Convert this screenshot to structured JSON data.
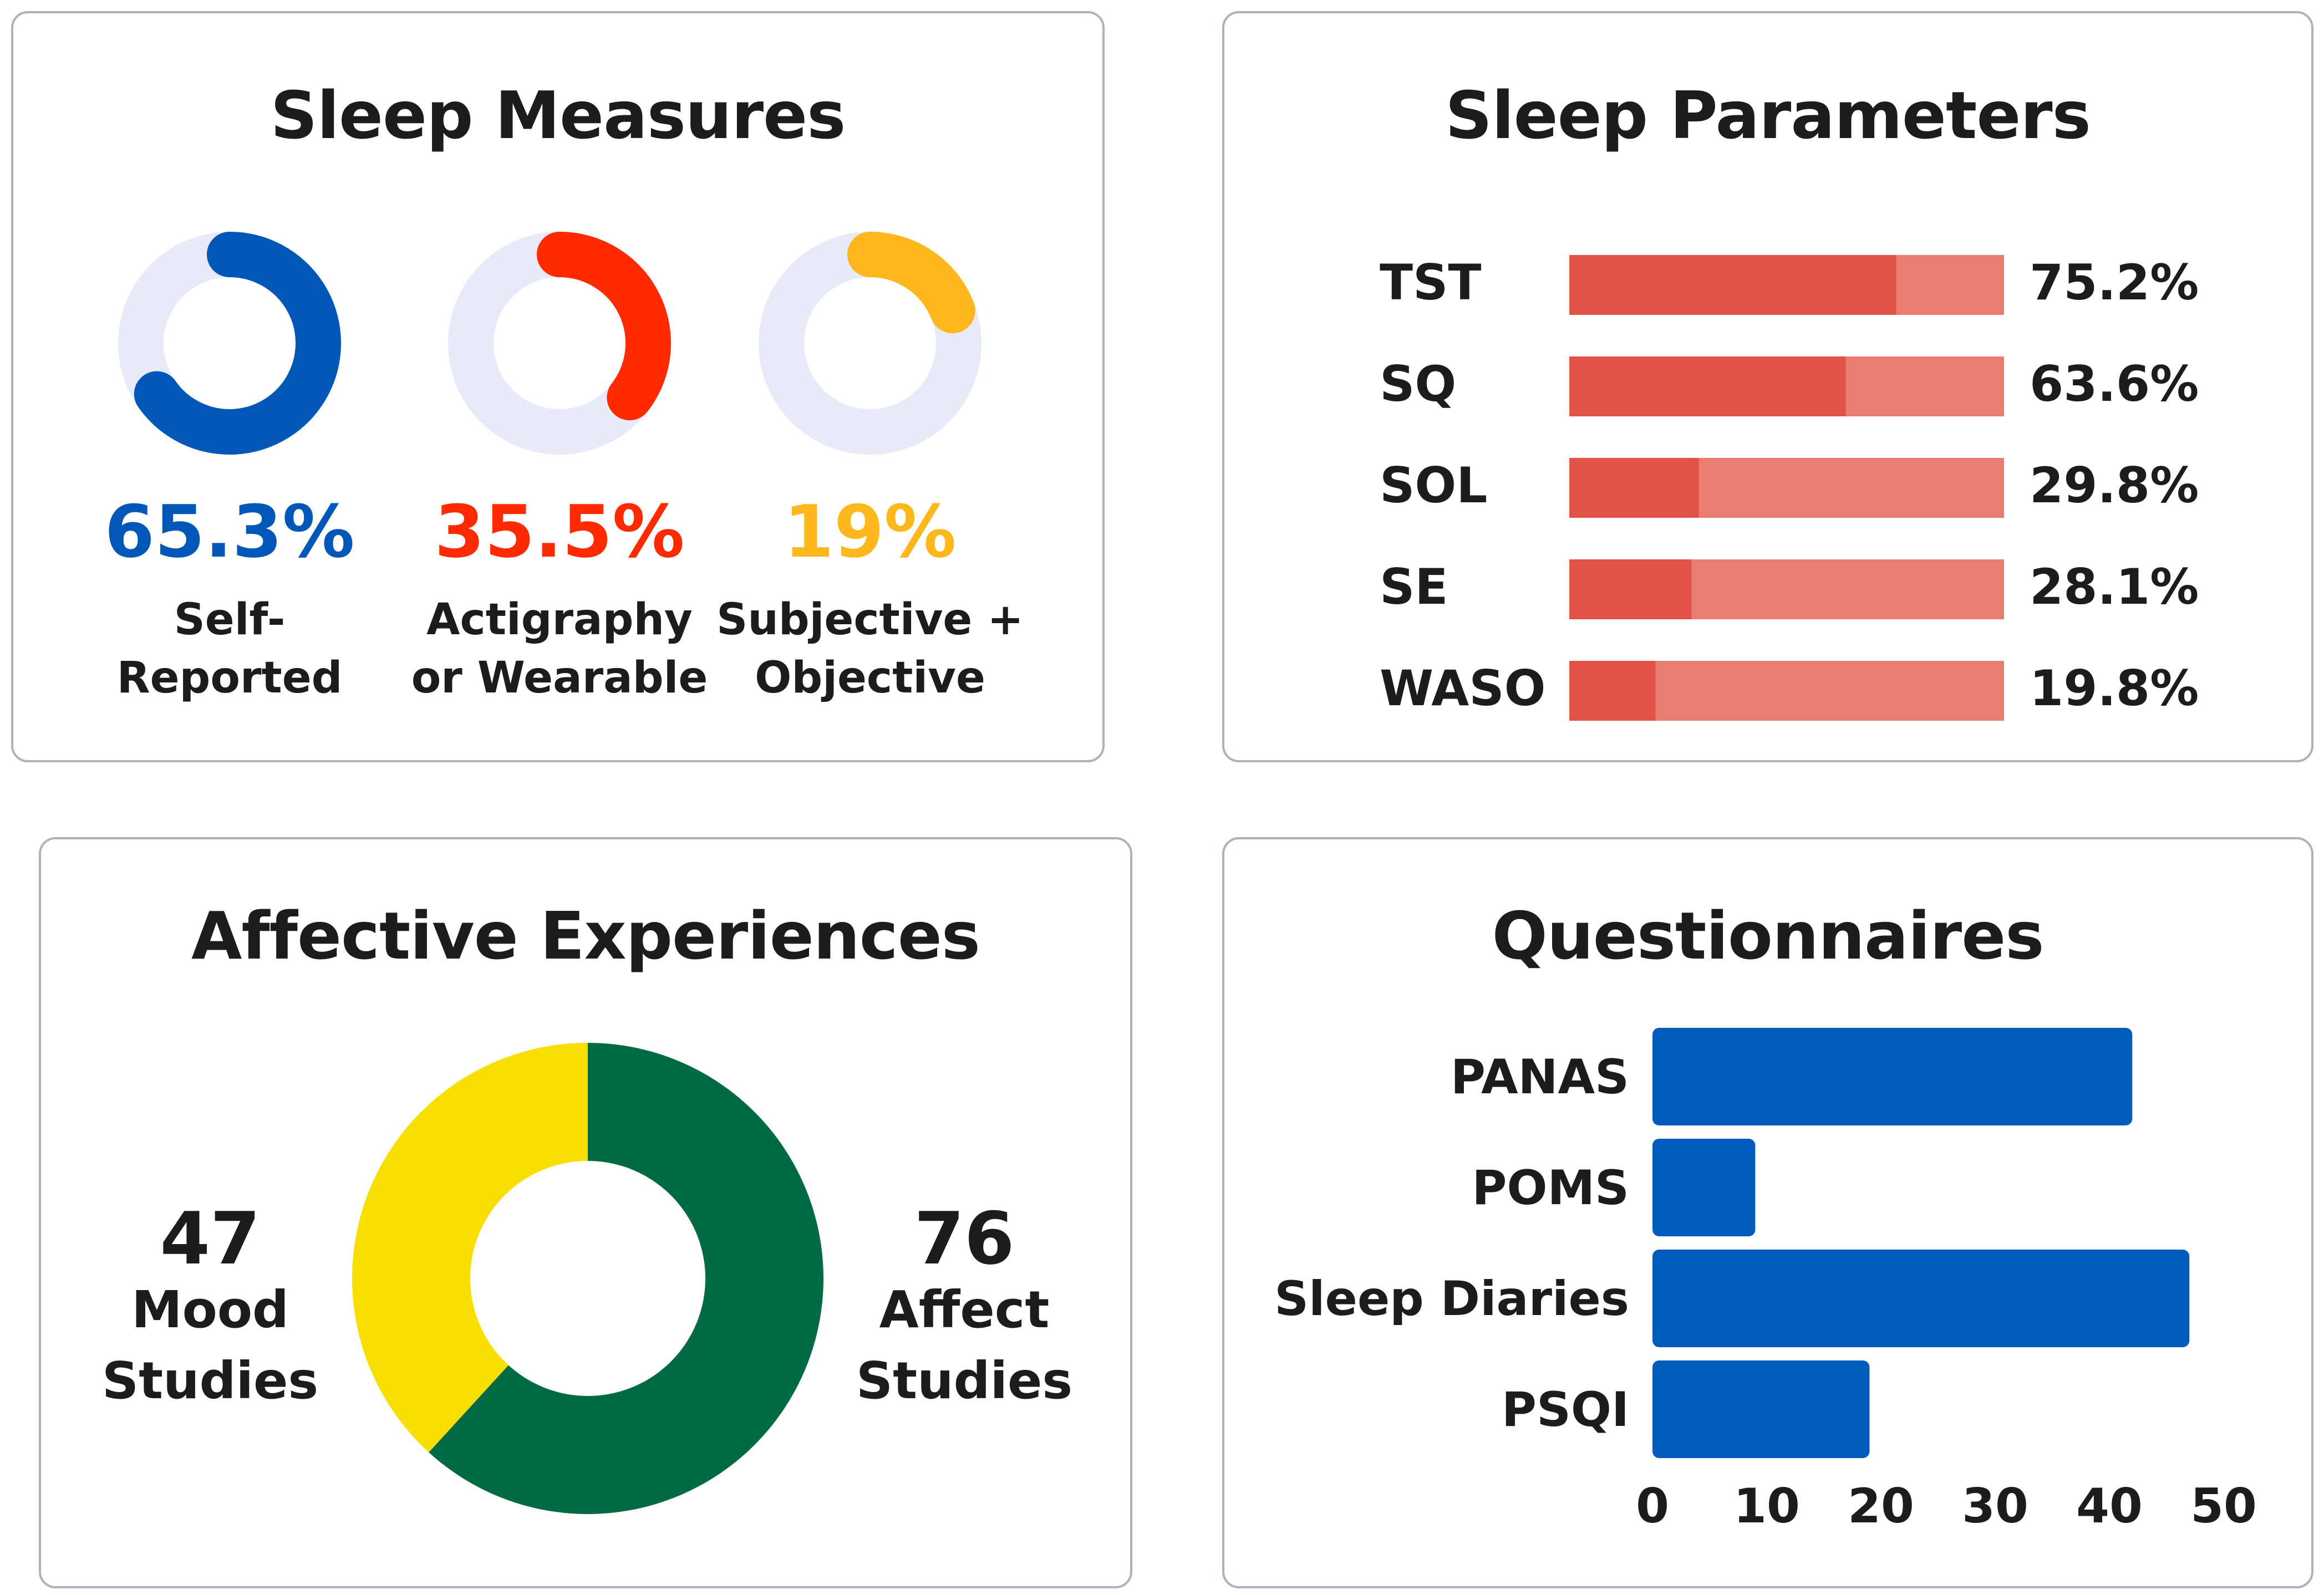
{
  "panels": {
    "sleep_measures": {
      "title": "Sleep Measures"
    },
    "sleep_parameters": {
      "title": "Sleep Parameters"
    },
    "affective_experiences": {
      "title": "Affective Experiences"
    },
    "questionnaires": {
      "title": "Questionnaires"
    }
  },
  "chart_data": [
    {
      "id": "sleep_measures",
      "type": "pie",
      "title": "Sleep Measures",
      "items": [
        {
          "value_label": "65.3%",
          "value": 65.3,
          "label_lines": [
            "Self-",
            "Reported"
          ],
          "color": "#0057b8"
        },
        {
          "value_label": "35.5%",
          "value": 35.5,
          "label_lines": [
            "Actigraphy",
            "or Wearable"
          ],
          "color": "#ff2a00"
        },
        {
          "value_label": "19%",
          "value": 19,
          "label_lines": [
            "Subjective +",
            "Objective"
          ],
          "color": "#ffb81c"
        }
      ],
      "track_color": "#e8eafa"
    },
    {
      "id": "sleep_parameters",
      "type": "bar",
      "title": "Sleep Parameters",
      "categories": [
        "TST",
        "SQ",
        "SOL",
        "SE",
        "WASO"
      ],
      "values": [
        75.2,
        63.6,
        29.8,
        28.1,
        19.8
      ],
      "value_labels": [
        "75.2%",
        "63.6%",
        "29.8%",
        "28.1%",
        "19.8%"
      ],
      "ylim": [
        0,
        100
      ],
      "fill_color": "#e35247",
      "track_color": "#eb7c72"
    },
    {
      "id": "affective_experiences",
      "type": "pie",
      "title": "Affective Experiences",
      "slices": [
        {
          "count": "76",
          "label_lines": [
            "Affect",
            "Studies"
          ],
          "value": 76,
          "color": "#006a45"
        },
        {
          "count": "47",
          "label_lines": [
            "Mood",
            "Studies"
          ],
          "value": 47,
          "color": "#f9df00"
        }
      ]
    },
    {
      "id": "questionnaires",
      "type": "bar",
      "title": "Questionnaires",
      "categories": [
        "PANAS",
        "POMS",
        "Sleep Diaries",
        "PSQI"
      ],
      "values": [
        42,
        9,
        47,
        19
      ],
      "xticks": [
        "0",
        "10",
        "20",
        "30",
        "40",
        "50"
      ],
      "xlim": [
        0,
        50
      ],
      "color": "#005bbd"
    }
  ]
}
